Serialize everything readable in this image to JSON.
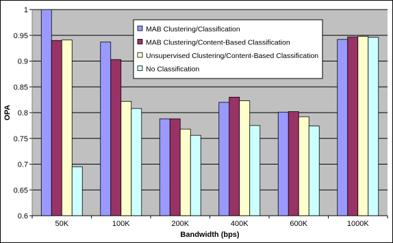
{
  "chart_data": {
    "type": "bar",
    "xlabel": "Bandwidth (bps)",
    "ylabel": "OPA",
    "ylim": [
      0.6,
      1.0
    ],
    "yticks": [
      "0.6",
      "0.65",
      "0.7",
      "0.75",
      "0.8",
      "0.85",
      "0.9",
      "0.95",
      "1"
    ],
    "categories": [
      "50K",
      "100K",
      "200K",
      "400K",
      "600K",
      "1000K"
    ],
    "grid": true,
    "legend_position": "top-right",
    "series": [
      {
        "name": "MAB Clustering/Classification",
        "color": "#9999ff",
        "values": [
          1.0,
          0.937,
          0.788,
          0.82,
          0.801,
          0.942
        ]
      },
      {
        "name": "MAB Clustering/Content-Based Classification",
        "color": "#993366",
        "values": [
          0.94,
          0.903,
          0.788,
          0.83,
          0.802,
          0.947
        ]
      },
      {
        "name": "Unsupervised Clustering/Content-Based Classification",
        "color": "#ffffcc",
        "values": [
          0.941,
          0.822,
          0.768,
          0.823,
          0.792,
          0.948
        ]
      },
      {
        "name": "No Classification",
        "color": "#ccffff",
        "values": [
          0.695,
          0.808,
          0.756,
          0.775,
          0.774,
          0.946
        ]
      }
    ],
    "plot_background": "#c0c0c0"
  }
}
